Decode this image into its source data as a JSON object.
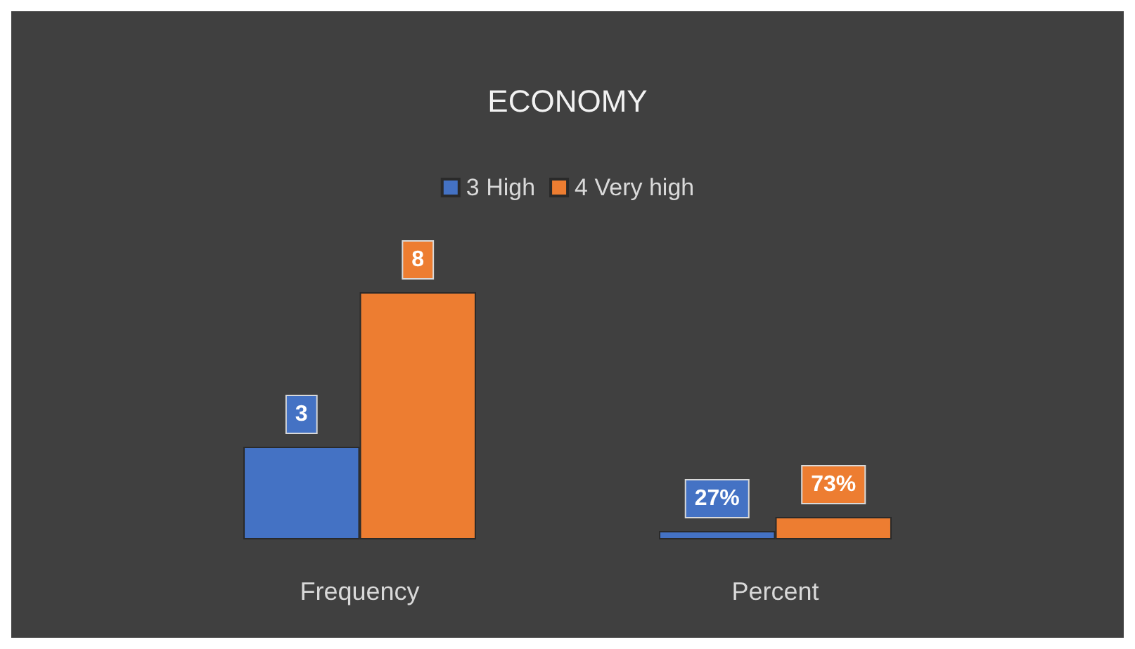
{
  "chart_data": {
    "type": "bar",
    "title": "ECONOMY",
    "categories": [
      "Frequency",
      "Percent"
    ],
    "series": [
      {
        "name": "3 High",
        "color": "#4472c4",
        "values": [
          3,
          0.27
        ],
        "value_labels": [
          "3",
          "27%"
        ]
      },
      {
        "name": "4 Very high",
        "color": "#ed7d31",
        "values": [
          8,
          0.73
        ],
        "value_labels": [
          "8",
          "73%"
        ]
      }
    ],
    "legend": "top"
  }
}
